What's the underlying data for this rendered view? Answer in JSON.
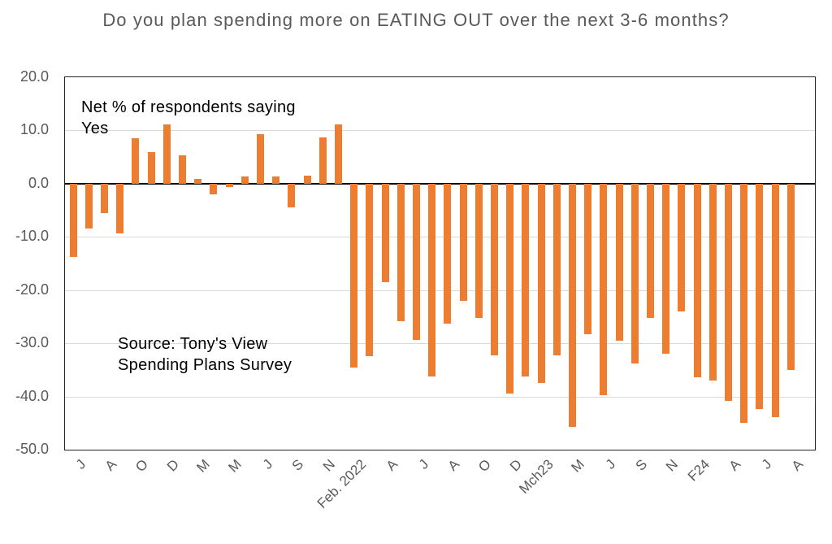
{
  "title": "Do you plan spending more on EATING OUT over the next 3-6 months?",
  "annotations": {
    "net_respondents": "Net % of respondents saying Yes",
    "source": "Source: Tony's View Spending Plans Survey"
  },
  "colors": {
    "bar": "#ED7D31",
    "title_text": "#595959",
    "axis_text": "#595959",
    "gridline": "#D9D9D9",
    "zero_line": "#000000",
    "plot_border": "#262626",
    "background": "#FFFFFF"
  },
  "chart_data": {
    "type": "bar",
    "title": "Do you plan spending more on EATING OUT over the next 3-6 months?",
    "annotation": "Net % of respondents saying Yes",
    "source": "Source: Tony's View Spending Plans Survey",
    "xlabel": "",
    "ylabel": "Net % of respondents saying Yes",
    "ylim": [
      -50,
      20
    ],
    "ytick_interval": 10,
    "ytick_labels": [
      "20.0",
      "10.0",
      "0.0",
      "-10.0",
      "-20.0",
      "-30.0",
      "-40.0",
      "-50.0"
    ],
    "grid": true,
    "legend": false,
    "bar_color": "#ED7D31",
    "categories": [
      "J",
      "",
      "A",
      "",
      "O",
      "",
      "D",
      "",
      "M",
      "",
      "M",
      "",
      "J",
      "",
      "S",
      "",
      "N",
      "",
      "Feb. 2022",
      "",
      "A",
      "",
      "J",
      "",
      "A",
      "",
      "O",
      "",
      "D",
      "",
      "Mch23",
      "",
      "M",
      "",
      "J",
      "",
      "S",
      "",
      "N",
      "",
      "F24",
      "",
      "A",
      "",
      "J",
      "",
      "A"
    ],
    "values": [
      -13.8,
      -8.5,
      -5.5,
      -9.3,
      8.6,
      6.0,
      11.2,
      5.4,
      0.9,
      -2.0,
      -0.6,
      1.4,
      9.3,
      1.4,
      -4.4,
      1.5,
      8.7,
      11.2,
      -34.6,
      -32.5,
      -18.5,
      -25.8,
      -29.4,
      -36.2,
      -26.3,
      -22.0,
      -25.2,
      -32.3,
      -39.4,
      -36.3,
      -37.5,
      -32.2,
      -45.7,
      -28.3,
      -39.7,
      -29.5,
      -33.8,
      -25.3,
      -31.9,
      -24.0,
      -36.4,
      -37.0,
      -40.8,
      -45.0,
      -42.3,
      -43.9,
      -35.1
    ]
  }
}
